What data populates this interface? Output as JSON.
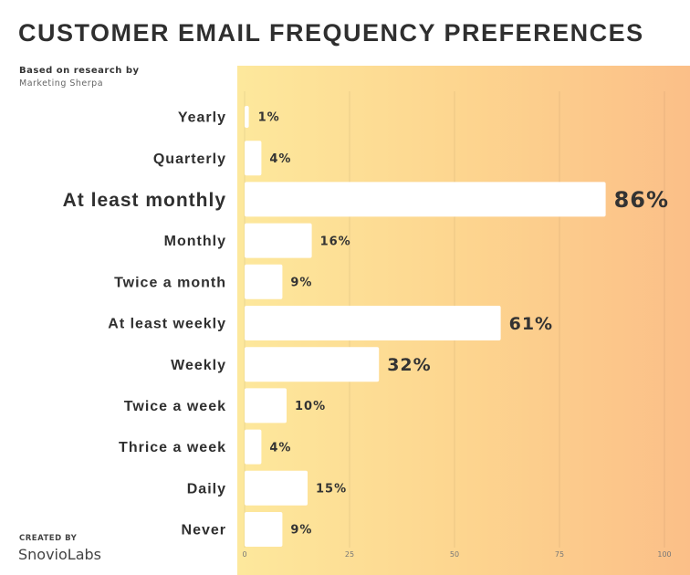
{
  "chart_data": {
    "type": "bar",
    "orientation": "horizontal",
    "title": "CUSTOMER EMAIL FREQUENCY PREFERENCES",
    "subtitle": "Based on research by",
    "source": "Marketing Sherpa",
    "categories": [
      "Yearly",
      "Quarterly",
      "At least monthly",
      "Monthly",
      "Twice a month",
      "At least weekly",
      "Weekly",
      "Twice a week",
      "Thrice a week",
      "Daily",
      "Never"
    ],
    "values": [
      1,
      4,
      86,
      16,
      9,
      61,
      32,
      10,
      4,
      15,
      9
    ],
    "labels": [
      "1%",
      "4%",
      "86%",
      "16%",
      "9%",
      "61%",
      "32%",
      "10%",
      "4%",
      "15%",
      "9%"
    ],
    "highlight": [
      "small",
      "small",
      "large",
      "small",
      "small",
      "medium",
      "medium",
      "small",
      "small",
      "small",
      "small"
    ],
    "xlim": [
      0,
      100
    ],
    "xticks": [
      0,
      25,
      50,
      75,
      100
    ],
    "grid": true
  },
  "footer": {
    "created_by": "CREATED BY",
    "brand": "SnovioLabs"
  }
}
